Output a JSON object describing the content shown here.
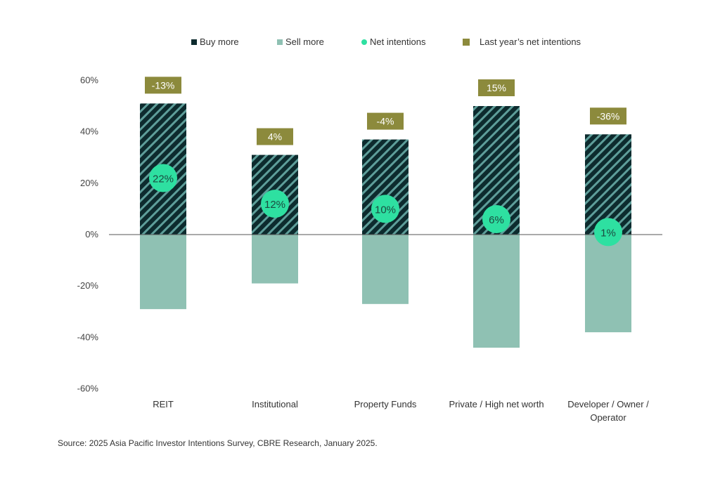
{
  "chart_data": {
    "type": "bar",
    "categories": [
      "REIT",
      "Institutional",
      "Property Funds",
      "Private / High net worth",
      "Developer / Owner / Operator"
    ],
    "series": [
      {
        "name": "Buy more",
        "values": [
          51,
          31,
          37,
          50,
          39
        ]
      },
      {
        "name": "Sell more",
        "values": [
          -29,
          -19,
          -27,
          -44,
          -38
        ]
      },
      {
        "name": "Net intentions",
        "values": [
          22,
          12,
          10,
          6,
          1
        ]
      },
      {
        "name": "Last year's net intentions",
        "values": [
          -13,
          4,
          -4,
          15,
          -36
        ]
      }
    ],
    "ylim": [
      -60,
      60
    ],
    "yticks": [
      60,
      40,
      20,
      0,
      -20,
      -40,
      -60
    ],
    "ytick_labels": [
      "60%",
      "40%",
      "20%",
      "0%",
      "-20%",
      "-40%",
      "-60%"
    ],
    "legend": [
      "Buy more",
      "Sell more",
      "Net intentions",
      "Last year’s net intentions"
    ],
    "legend_position": "top",
    "colors": {
      "buy": "#0d2b2e",
      "buy_stripe": "#5e9e9a",
      "sell": "#8fc1b3",
      "net": "#2ee0a1",
      "last_year": "#8c8a3c"
    },
    "title": "",
    "xlabel": "",
    "ylabel": ""
  },
  "source": "Source: 2025 Asia Pacific Investor Intentions Survey, CBRE Research, January 2025."
}
